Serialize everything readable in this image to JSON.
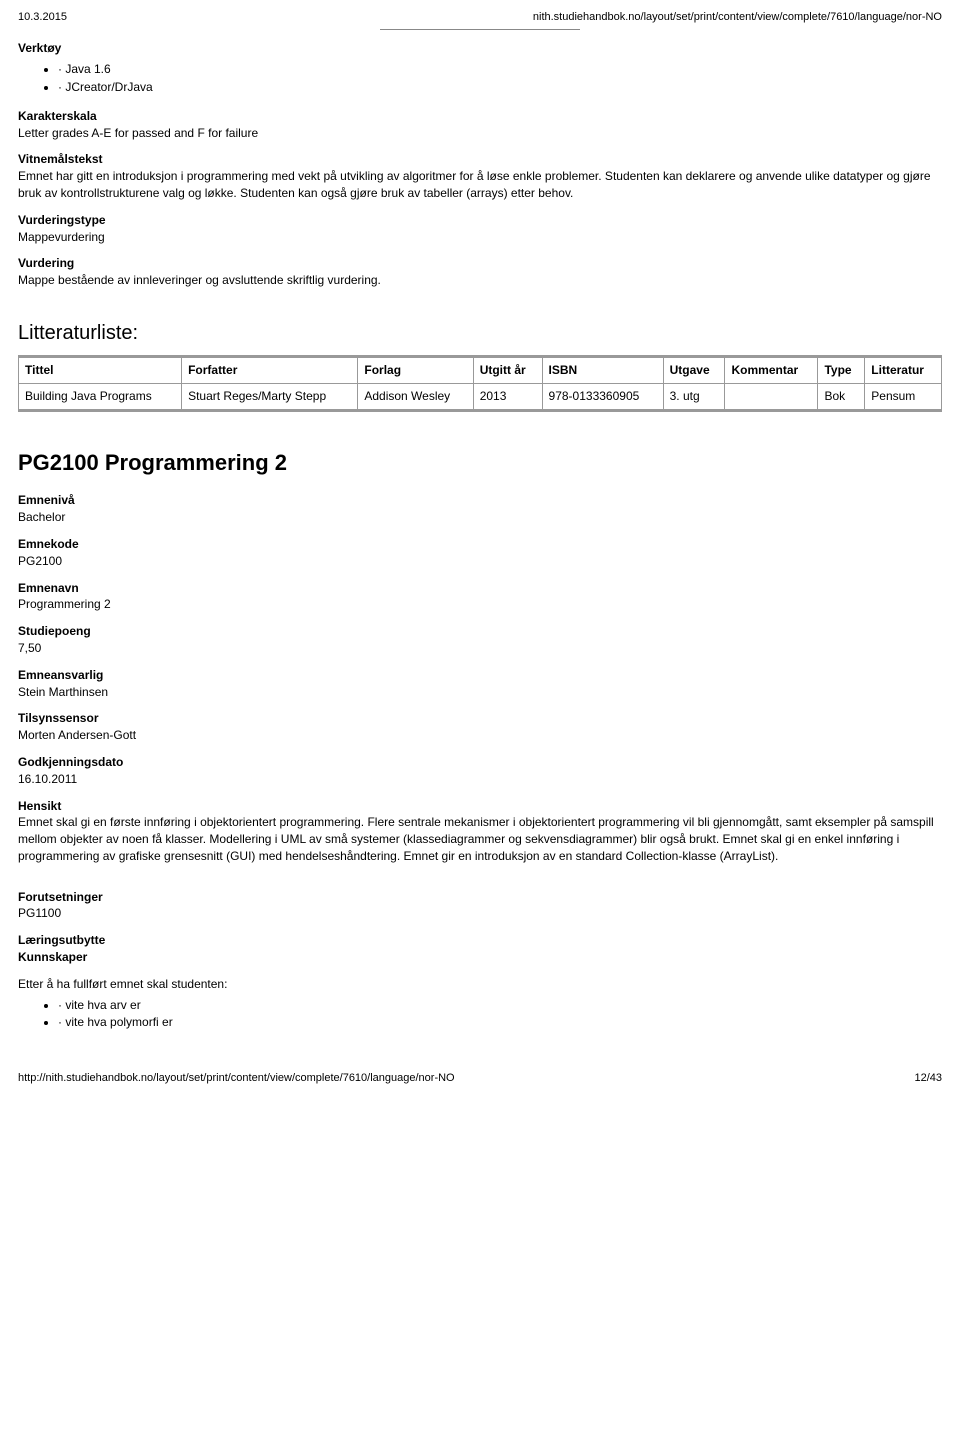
{
  "header": {
    "date": "10.3.2015",
    "path": "nith.studiehandbok.no/layout/set/print/content/view/complete/7610/language/nor-NO"
  },
  "verktoy": {
    "heading": "Verktøy",
    "items": [
      "· Java 1.6",
      "· JCreator/DrJava"
    ]
  },
  "karakterskala": {
    "heading": "Karakterskala",
    "text": "Letter grades A-E for passed and F for failure"
  },
  "vitnemalstekst": {
    "heading": "Vitnemålstekst",
    "text": "Emnet har gitt en introduksjon i programmering med vekt på utvikling av algoritmer for å løse enkle problemer. Studenten kan deklarere og anvende ulike datatyper og gjøre bruk av kontrollstrukturene valg og løkke. Studenten kan også gjøre bruk av tabeller (arrays) etter behov."
  },
  "vurderingstype": {
    "heading": "Vurderingstype",
    "text": "Mappevurdering"
  },
  "vurdering": {
    "heading": "Vurdering",
    "text": "Mappe bestående av innleveringer og avsluttende skriftlig vurdering."
  },
  "litteratur": {
    "title": "Litteraturliste:",
    "columns": [
      "Tittel",
      "Forfatter",
      "Forlag",
      "Utgitt år",
      "ISBN",
      "Utgave",
      "Kommentar",
      "Type",
      "Litteratur"
    ],
    "rows": [
      {
        "tittel": "Building Java Programs",
        "forfatter": "Stuart Reges/Marty Stepp",
        "forlag": "Addison Wesley",
        "ar": "2013",
        "isbn": "978-0133360905",
        "utgave": "3. utg",
        "kommentar": "",
        "type": "Bok",
        "litteratur": "Pensum"
      }
    ]
  },
  "course": {
    "title": "PG2100 Programmering 2",
    "fields": [
      {
        "label": "Emnenivå",
        "value": "Bachelor"
      },
      {
        "label": "Emnekode",
        "value": "PG2100"
      },
      {
        "label": "Emnenavn",
        "value": "Programmering 2"
      },
      {
        "label": "Studiepoeng",
        "value": "7,50"
      },
      {
        "label": "Emneansvarlig",
        "value": "Stein Marthinsen"
      },
      {
        "label": "Tilsynssensor",
        "value": "Morten Andersen-Gott"
      },
      {
        "label": "Godkjenningsdato",
        "value": "16.10.2011"
      }
    ],
    "hensikt": {
      "label": "Hensikt",
      "text": "Emnet skal gi en første innføring i objektorientert programmering. Flere sentrale mekanismer i objektorientert programmering vil bli gjennomgått, samt eksempler på samspill mellom objekter av noen få klasser. Modellering i UML av små systemer (klassediagrammer og sekvensdiagrammer) blir også brukt. Emnet skal gi en enkel innføring i programmering av grafiske grensesnitt (GUI) med hendelseshåndtering. Emnet gir en introduksjon av en standard Collection-klasse (ArrayList)."
    },
    "forutsetninger": {
      "label": "Forutsetninger",
      "value": "PG1100"
    },
    "laeringsutbytte": {
      "label": "Læringsutbytte",
      "sublabel": "Kunnskaper",
      "intro": "Etter å ha fullført emnet skal studenten:",
      "items": [
        "· vite hva arv er",
        "· vite hva polymorfi er"
      ]
    }
  },
  "footer": {
    "url": "http://nith.studiehandbok.no/layout/set/print/content/view/complete/7610/language/nor-NO",
    "page": "12/43"
  }
}
